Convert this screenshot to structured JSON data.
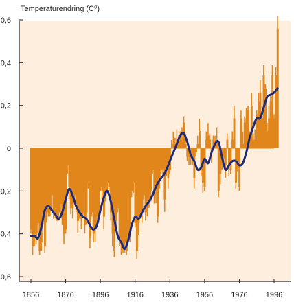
{
  "chart_data": {
    "type": "bar",
    "ylabel": "Temperaturendring (C⁰)",
    "ylim": [
      -0.64,
      0.64
    ],
    "xlim": [
      1851,
      2002
    ],
    "grid": false,
    "y_ticks": [
      0.6,
      0.4,
      0.2,
      0,
      -0.2,
      -0.4,
      -0.6
    ],
    "y_tick_labels": [
      "0,6",
      "0,4",
      "0,2",
      "0",
      "-0,2",
      "-0,4",
      "-0,6"
    ],
    "x_ticks": [
      1856,
      1876,
      1896,
      1916,
      1936,
      1956,
      1976,
      1996
    ],
    "x_tick_labels": [
      "1856",
      "1876",
      "1896",
      "1916",
      "1936",
      "1956",
      "1976",
      "1996"
    ],
    "colors": {
      "background": "#fdeedd",
      "bars": "#e0861a",
      "smooth": "#1c2a78",
      "axis": "#222222"
    },
    "series": [
      {
        "kind": "bar",
        "years": [
          1856,
          1857,
          1858,
          1859,
          1860,
          1861,
          1862,
          1863,
          1864,
          1865,
          1866,
          1867,
          1868,
          1869,
          1870,
          1871,
          1872,
          1873,
          1874,
          1875,
          1876,
          1877,
          1878,
          1879,
          1880,
          1881,
          1882,
          1883,
          1884,
          1885,
          1886,
          1887,
          1888,
          1889,
          1890,
          1891,
          1892,
          1893,
          1894,
          1895,
          1896,
          1897,
          1898,
          1899,
          1900,
          1901,
          1902,
          1903,
          1904,
          1905,
          1906,
          1907,
          1908,
          1909,
          1910,
          1911,
          1912,
          1913,
          1914,
          1915,
          1916,
          1917,
          1918,
          1919,
          1920,
          1921,
          1922,
          1923,
          1924,
          1925,
          1926,
          1927,
          1928,
          1929,
          1930,
          1931,
          1932,
          1933,
          1934,
          1935,
          1936,
          1937,
          1938,
          1939,
          1940,
          1941,
          1942,
          1943,
          1944,
          1945,
          1946,
          1947,
          1948,
          1949,
          1950,
          1951,
          1952,
          1953,
          1954,
          1955,
          1956,
          1957,
          1958,
          1959,
          1960,
          1961,
          1962,
          1963,
          1964,
          1965,
          1966,
          1967,
          1968,
          1969,
          1970,
          1971,
          1972,
          1973,
          1974,
          1975,
          1976,
          1977,
          1978,
          1979,
          1980,
          1981,
          1982,
          1983,
          1984,
          1985,
          1986,
          1987,
          1988,
          1989,
          1990,
          1991,
          1992,
          1993,
          1994,
          1995,
          1996,
          1997,
          1998
        ],
        "values": [
          -0.38,
          -0.46,
          -0.4,
          -0.42,
          -0.35,
          -0.48,
          -0.44,
          -0.3,
          -0.46,
          -0.3,
          -0.3,
          -0.28,
          -0.22,
          -0.3,
          -0.28,
          -0.32,
          -0.3,
          -0.26,
          -0.33,
          -0.4,
          -0.38,
          -0.08,
          -0.18,
          -0.28,
          -0.28,
          -0.22,
          -0.26,
          -0.34,
          -0.3,
          -0.33,
          -0.3,
          -0.36,
          -0.3,
          -0.16,
          -0.42,
          -0.3,
          -0.4,
          -0.38,
          -0.32,
          -0.3,
          -0.18,
          -0.2,
          -0.32,
          -0.22,
          -0.16,
          -0.18,
          -0.3,
          -0.4,
          -0.48,
          -0.34,
          -0.28,
          -0.42,
          -0.44,
          -0.46,
          -0.44,
          -0.48,
          -0.4,
          -0.38,
          -0.2,
          -0.16,
          -0.35,
          -0.48,
          -0.35,
          -0.3,
          -0.3,
          -0.22,
          -0.3,
          -0.26,
          -0.25,
          -0.2,
          -0.1,
          -0.22,
          -0.2,
          -0.32,
          -0.14,
          -0.1,
          -0.1,
          -0.24,
          -0.1,
          -0.14,
          -0.1,
          0.0,
          0.02,
          0.02,
          0.04,
          0.04,
          0.04,
          0.04,
          0.12,
          0.02,
          -0.04,
          -0.04,
          -0.02,
          -0.05,
          -0.14,
          -0.02,
          0.02,
          0.08,
          -0.1,
          -0.16,
          -0.18,
          0.04,
          0.06,
          0.04,
          -0.02,
          0.04,
          0.02,
          0.04,
          -0.2,
          -0.12,
          -0.08,
          -0.05,
          -0.08,
          0.04,
          -0.08,
          -0.1,
          0.04,
          0.14,
          -0.16,
          -0.06,
          -0.18,
          0.14,
          0.02,
          0.12,
          0.14,
          0.18,
          0.04,
          0.2,
          0.04,
          0.04,
          0.16,
          0.22,
          0.26,
          0.14,
          0.34,
          0.28,
          0.08,
          0.14,
          0.22,
          0.34,
          0.14,
          0.34,
          0.56
        ]
      },
      {
        "kind": "line",
        "smoothed": true,
        "x": [
          1856,
          1858,
          1860,
          1862,
          1864,
          1866,
          1868,
          1870,
          1872,
          1874,
          1876,
          1878,
          1880,
          1882,
          1884,
          1886,
          1888,
          1890,
          1892,
          1894,
          1896,
          1898,
          1900,
          1902,
          1904,
          1906,
          1908,
          1910,
          1912,
          1914,
          1916,
          1918,
          1920,
          1922,
          1924,
          1926,
          1928,
          1930,
          1932,
          1934,
          1936,
          1938,
          1940,
          1942,
          1944,
          1946,
          1948,
          1950,
          1952,
          1954,
          1956,
          1958,
          1960,
          1962,
          1964,
          1966,
          1968,
          1970,
          1972,
          1974,
          1976,
          1978,
          1980,
          1982,
          1984,
          1986,
          1988,
          1990,
          1992,
          1994,
          1996,
          1998
        ],
        "y": [
          -0.41,
          -0.41,
          -0.42,
          -0.37,
          -0.29,
          -0.27,
          -0.29,
          -0.31,
          -0.33,
          -0.3,
          -0.24,
          -0.19,
          -0.22,
          -0.27,
          -0.3,
          -0.32,
          -0.33,
          -0.36,
          -0.38,
          -0.36,
          -0.29,
          -0.23,
          -0.2,
          -0.25,
          -0.33,
          -0.41,
          -0.44,
          -0.47,
          -0.43,
          -0.36,
          -0.32,
          -0.33,
          -0.3,
          -0.27,
          -0.25,
          -0.22,
          -0.18,
          -0.15,
          -0.13,
          -0.1,
          -0.06,
          -0.02,
          0.02,
          0.06,
          0.07,
          0.03,
          -0.03,
          -0.06,
          -0.1,
          -0.09,
          -0.05,
          -0.07,
          -0.02,
          0.02,
          0.03,
          -0.04,
          -0.1,
          -0.08,
          -0.06,
          -0.06,
          -0.08,
          -0.07,
          -0.02,
          0.05,
          0.1,
          0.14,
          0.14,
          0.19,
          0.24,
          0.25,
          0.26,
          0.28
        ]
      }
    ]
  }
}
